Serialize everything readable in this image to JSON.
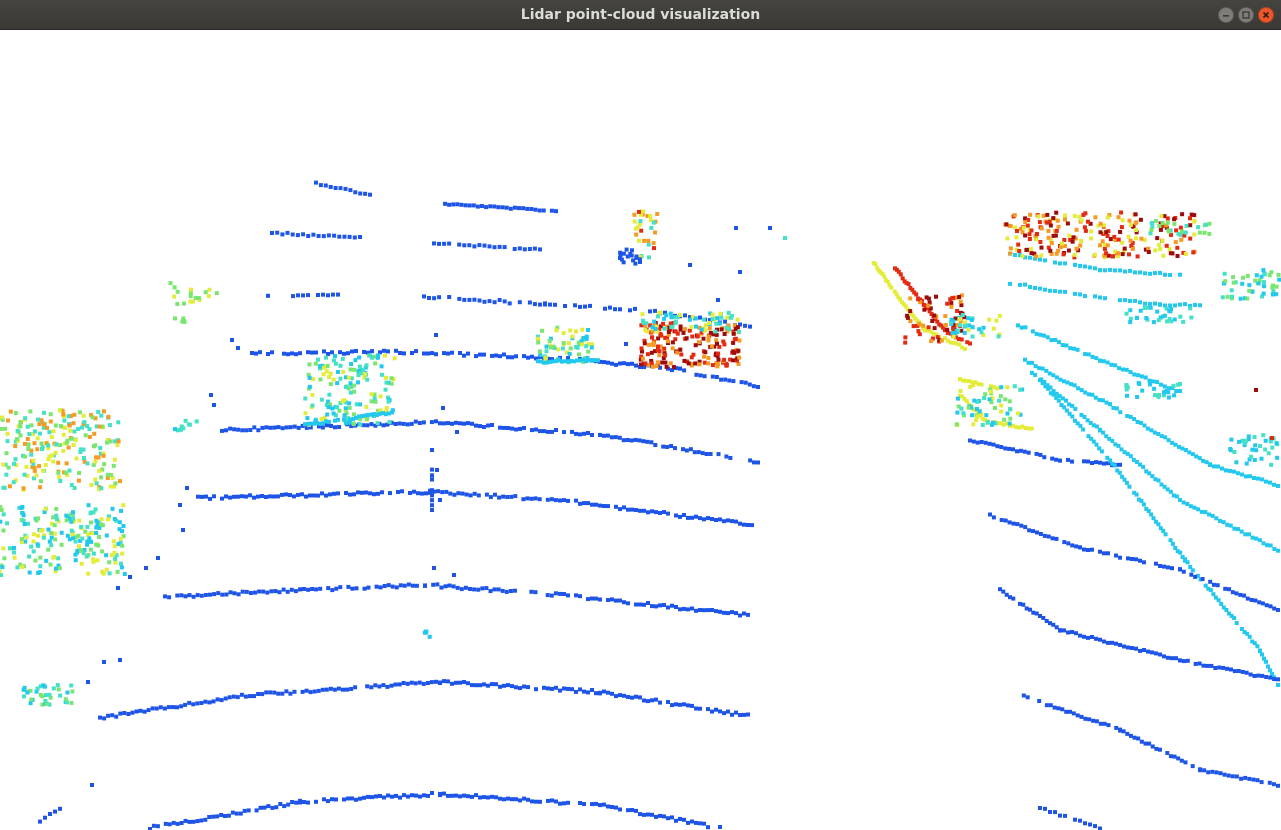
{
  "window": {
    "title": "Lidar point-cloud visualization",
    "controls": [
      "minimize",
      "maximize",
      "close"
    ]
  },
  "visualization": {
    "background": "#ffffff",
    "colormap": "jet",
    "colors": {
      "ground": "#1f55e6",
      "near": "#1f5de8",
      "cyan": "#23c8ee",
      "teal": "#44e0c8",
      "green": "#7be66f",
      "yellow": "#e4ec3a",
      "orange": "#f59a22",
      "red": "#e42a12",
      "darkred": "#9d0b0b"
    }
  }
}
